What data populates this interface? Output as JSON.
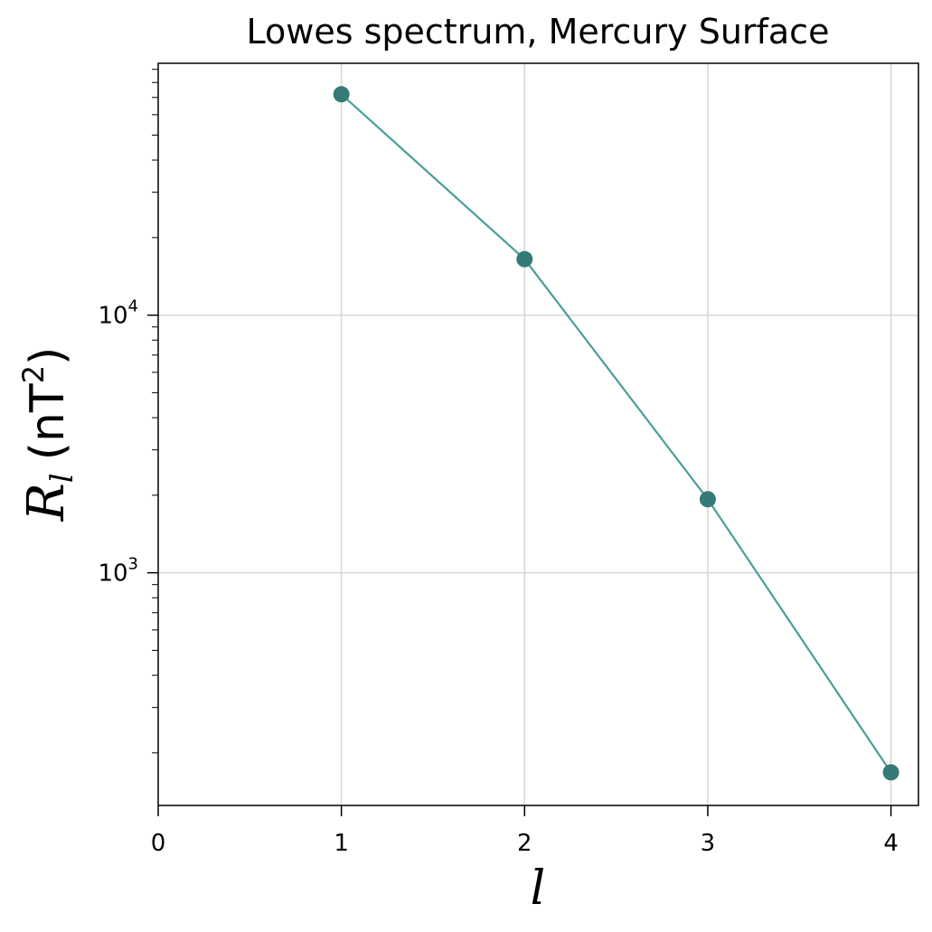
{
  "chart_data": {
    "type": "line",
    "title": "Lowes spectrum, Mercury  Surface",
    "xlabel": "l",
    "ylabel": {
      "symbol": "R",
      "subscript": "l",
      "unit_open": "(nT",
      "unit_power": "2",
      "unit_close": ")"
    },
    "x": [
      1,
      2,
      3,
      4
    ],
    "series": [
      {
        "values": [
          72000,
          16500,
          1930,
          168
        ]
      }
    ],
    "xlim": [
      0,
      4.15
    ],
    "ylim": [
      125,
      95000
    ],
    "yscale": "log",
    "xticks": [
      "0",
      "1",
      "2",
      "3",
      "4"
    ],
    "yticks": [
      {
        "base": "10",
        "exp": "3",
        "value": 1000
      },
      {
        "base": "10",
        "exp": "4",
        "value": 10000
      }
    ],
    "grid": true,
    "line_color": "#4a9e98",
    "marker_color": "#367a77"
  }
}
